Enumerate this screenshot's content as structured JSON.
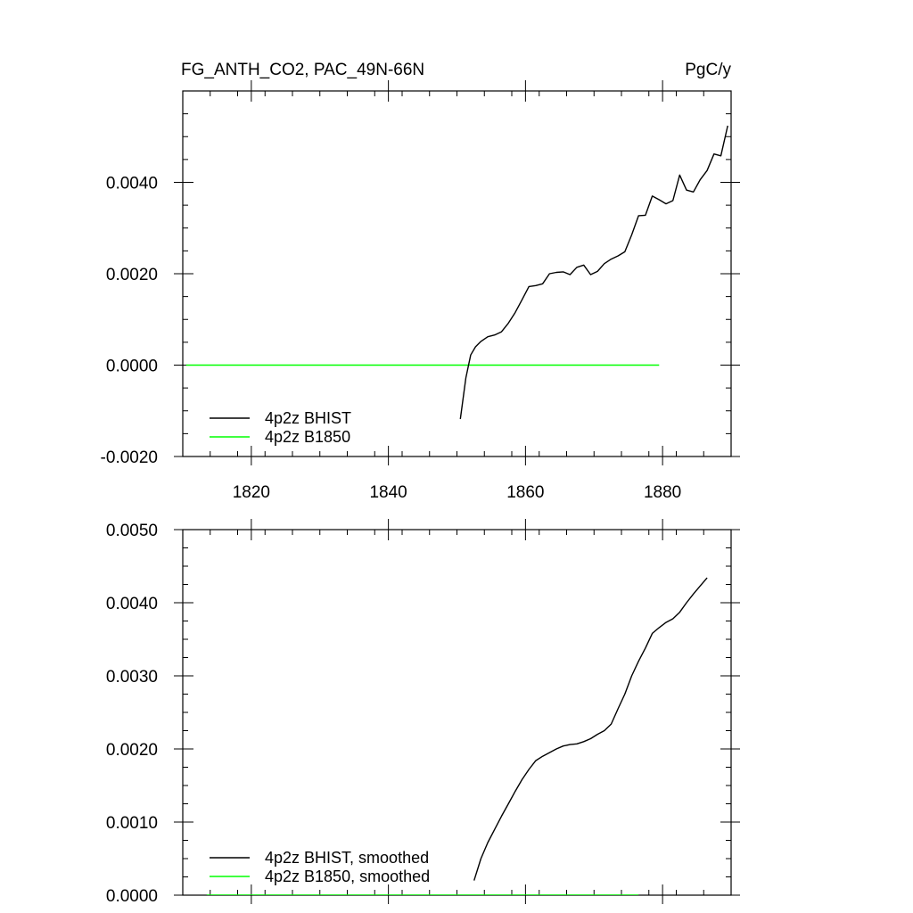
{
  "header": {
    "title_left": "FG_ANTH_CO2, PAC_49N-66N",
    "title_right": "PgC/y"
  },
  "colors": {
    "bhist": "#000000",
    "b1850": "#00ff00",
    "axis": "#000000"
  },
  "chart_data": [
    {
      "type": "line",
      "xlim": [
        1810,
        1890
      ],
      "ylim": [
        -0.002,
        0.006
      ],
      "xticks": [
        1820,
        1840,
        1860,
        1880
      ],
      "xtick_labels": [
        "1820",
        "1840",
        "1860",
        "1880"
      ],
      "yticks": [
        -0.002,
        0.0,
        0.002,
        0.004
      ],
      "ytick_labels": [
        "-0.0020",
        "0.0000",
        "0.0020",
        "0.0040"
      ],
      "legend_position": "bottom-left",
      "series": [
        {
          "name": "4p2z BHIST",
          "color": "#000000",
          "x": [
            1850.5,
            1851.3,
            1852.0,
            1852.7,
            1853.5,
            1854.5,
            1855.5,
            1856.5,
            1857.5,
            1858.5,
            1859.5,
            1860.5,
            1861.5,
            1862.5,
            1863.5,
            1864.5,
            1865.5,
            1866.5,
            1867.5,
            1868.5,
            1869.5,
            1870.5,
            1871.5,
            1872.5,
            1873.5,
            1874.5,
            1875.5,
            1876.5,
            1877.5,
            1878.5,
            1879.5,
            1880.5,
            1881.5,
            1882.5,
            1883.5,
            1884.5,
            1885.5,
            1886.5,
            1887.5,
            1888.5,
            1889.5
          ],
          "y": [
            -0.00118,
            -0.00028,
            0.00022,
            0.0004,
            0.00052,
            0.00062,
            0.00066,
            0.00073,
            0.00092,
            0.00115,
            0.00143,
            0.00172,
            0.00174,
            0.00178,
            0.002,
            0.00203,
            0.00204,
            0.00198,
            0.00214,
            0.00219,
            0.00198,
            0.00205,
            0.00222,
            0.00232,
            0.00239,
            0.00248,
            0.00285,
            0.00327,
            0.00328,
            0.0037,
            0.00362,
            0.00353,
            0.0036,
            0.00416,
            0.00383,
            0.00379,
            0.00406,
            0.00426,
            0.00462,
            0.00458,
            0.00524
          ]
        },
        {
          "name": "4p2z B1850",
          "color": "#00ff00",
          "x": [
            1810.5,
            1879.5
          ],
          "y": [
            0.0,
            0.0
          ]
        }
      ]
    },
    {
      "type": "line",
      "xlim": [
        1810,
        1890
      ],
      "ylim": [
        0.0,
        0.005
      ],
      "xticks": [
        1820,
        1840,
        1860,
        1880
      ],
      "yticks": [
        0.0,
        0.001,
        0.002,
        0.003,
        0.004,
        0.005
      ],
      "ytick_labels": [
        "0.0000",
        "0.0010",
        "0.0020",
        "0.0030",
        "0.0040",
        "0.0050"
      ],
      "legend_position": "bottom-left",
      "series": [
        {
          "name": "4p2z BHIST, smoothed",
          "color": "#000000",
          "x": [
            1852.5,
            1853.5,
            1854.5,
            1855.5,
            1856.5,
            1857.5,
            1858.5,
            1859.5,
            1860.5,
            1861.5,
            1862.5,
            1863.5,
            1864.5,
            1865.5,
            1866.5,
            1867.5,
            1868.5,
            1869.5,
            1870.5,
            1871.5,
            1872.5,
            1873.5,
            1874.5,
            1875.5,
            1876.5,
            1877.5,
            1878.5,
            1879.5,
            1880.5,
            1881.5,
            1882.5,
            1883.5,
            1884.5,
            1885.5,
            1886.5
          ],
          "y": [
            0.0002,
            0.0005,
            0.00072,
            0.0009,
            0.00108,
            0.00125,
            0.00142,
            0.00158,
            0.00172,
            0.00184,
            0.0019,
            0.00195,
            0.002,
            0.00204,
            0.00206,
            0.00207,
            0.0021,
            0.00214,
            0.0022,
            0.00225,
            0.00234,
            0.00255,
            0.00275,
            0.003,
            0.0032,
            0.00338,
            0.00358,
            0.00366,
            0.00373,
            0.00378,
            0.00387,
            0.004,
            0.00412,
            0.00423,
            0.00434
          ]
        },
        {
          "name": "4p2z B1850, smoothed",
          "color": "#00ff00",
          "x": [
            1813.5,
            1876.5
          ],
          "y": [
            0.0,
            0.0
          ]
        }
      ]
    }
  ]
}
